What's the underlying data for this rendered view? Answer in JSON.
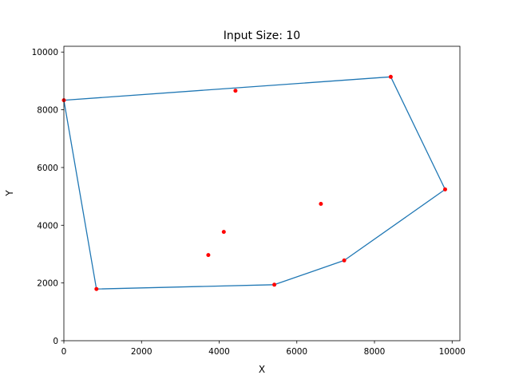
{
  "chart_data": {
    "type": "scatter",
    "title": "Input Size: 10",
    "xlabel": "X",
    "ylabel": "Y",
    "xlim": [
      0,
      10200
    ],
    "ylim": [
      0,
      10200
    ],
    "xticks": [
      0,
      2000,
      4000,
      6000,
      8000,
      10000
    ],
    "yticks": [
      0,
      2000,
      4000,
      6000,
      8000,
      10000
    ],
    "grid": false,
    "points": [
      {
        "x": 0,
        "y": 8330
      },
      {
        "x": 4420,
        "y": 8660
      },
      {
        "x": 8420,
        "y": 9140
      },
      {
        "x": 9820,
        "y": 5240
      },
      {
        "x": 6620,
        "y": 4740
      },
      {
        "x": 4120,
        "y": 3770
      },
      {
        "x": 3720,
        "y": 2970
      },
      {
        "x": 7220,
        "y": 2780
      },
      {
        "x": 5420,
        "y": 1940
      },
      {
        "x": 840,
        "y": 1790
      }
    ],
    "hull": [
      {
        "x": 0,
        "y": 8330
      },
      {
        "x": 8420,
        "y": 9140
      },
      {
        "x": 9820,
        "y": 5240
      },
      {
        "x": 7220,
        "y": 2780
      },
      {
        "x": 5420,
        "y": 1940
      },
      {
        "x": 840,
        "y": 1790
      },
      {
        "x": 0,
        "y": 8330
      }
    ],
    "colors": {
      "points": "#ff0000",
      "hull": "#1f77b4",
      "axes": "#000000"
    }
  }
}
